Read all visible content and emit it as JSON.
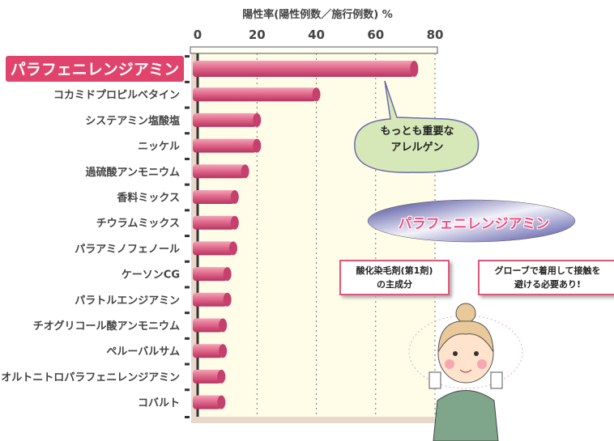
{
  "chart_data": {
    "type": "bar",
    "orientation": "horizontal",
    "title": "陽性率(陽性例数／施行例数) %",
    "xlim": [
      0,
      80
    ],
    "xticks": [
      "0",
      "20",
      "40",
      "60",
      "80"
    ],
    "grid": true,
    "categories": [
      "パラフェニレンジアミン",
      "コカミドプロピルベタイン",
      "システアミン塩酸塩",
      "ニッケル",
      "過硫酸アンモニウム",
      "香料ミックス",
      "チウラムミックス",
      "パラアミノフェノール",
      "ケーソンCG",
      "パラトルエンジアミン",
      "チオグリコール酸アンモニウム",
      "ペルーバルサム",
      "オルトニトロパラフェニレンジアミン",
      "コバルト"
    ],
    "values": [
      73,
      40,
      20,
      20,
      16,
      12.5,
      12.5,
      12,
      10,
      10,
      8.5,
      8.5,
      8,
      8
    ],
    "highlight_index": 0
  },
  "annotations": {
    "bubble_line1": "もっとも重要な",
    "bubble_line2": "アレルゲン",
    "banner": "パラフェニレンジアミン",
    "note1_line1": "酸化染毛剤(第1剤)",
    "note1_line2": "の主成分",
    "note2_line1": "グローブで着用して接触を",
    "note2_line2": "避ける必要あり!"
  },
  "colors": {
    "bar": "#d9507a",
    "highlight": "#e0436b",
    "plot_bg": "#fffde8",
    "bubble": "#d6e8b8"
  }
}
